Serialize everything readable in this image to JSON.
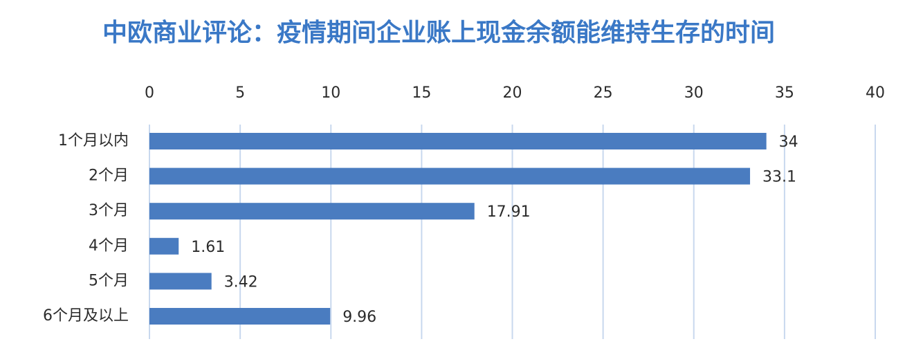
{
  "chart_data": {
    "type": "bar",
    "orientation": "horizontal",
    "title": "中欧商业评论：疫情期间企业账上现金余额能维持生存的时间",
    "categories": [
      "1个月以内",
      "2个月",
      "3个月",
      "4个月",
      "5个月",
      "6个月及以上"
    ],
    "values": [
      34,
      33.1,
      17.91,
      1.61,
      3.42,
      9.96
    ],
    "color": "#4a7cc0",
    "xlim": [
      0,
      40
    ],
    "xticks": [
      0,
      5,
      10,
      15,
      20,
      25,
      30,
      35,
      40
    ],
    "grid": true
  }
}
